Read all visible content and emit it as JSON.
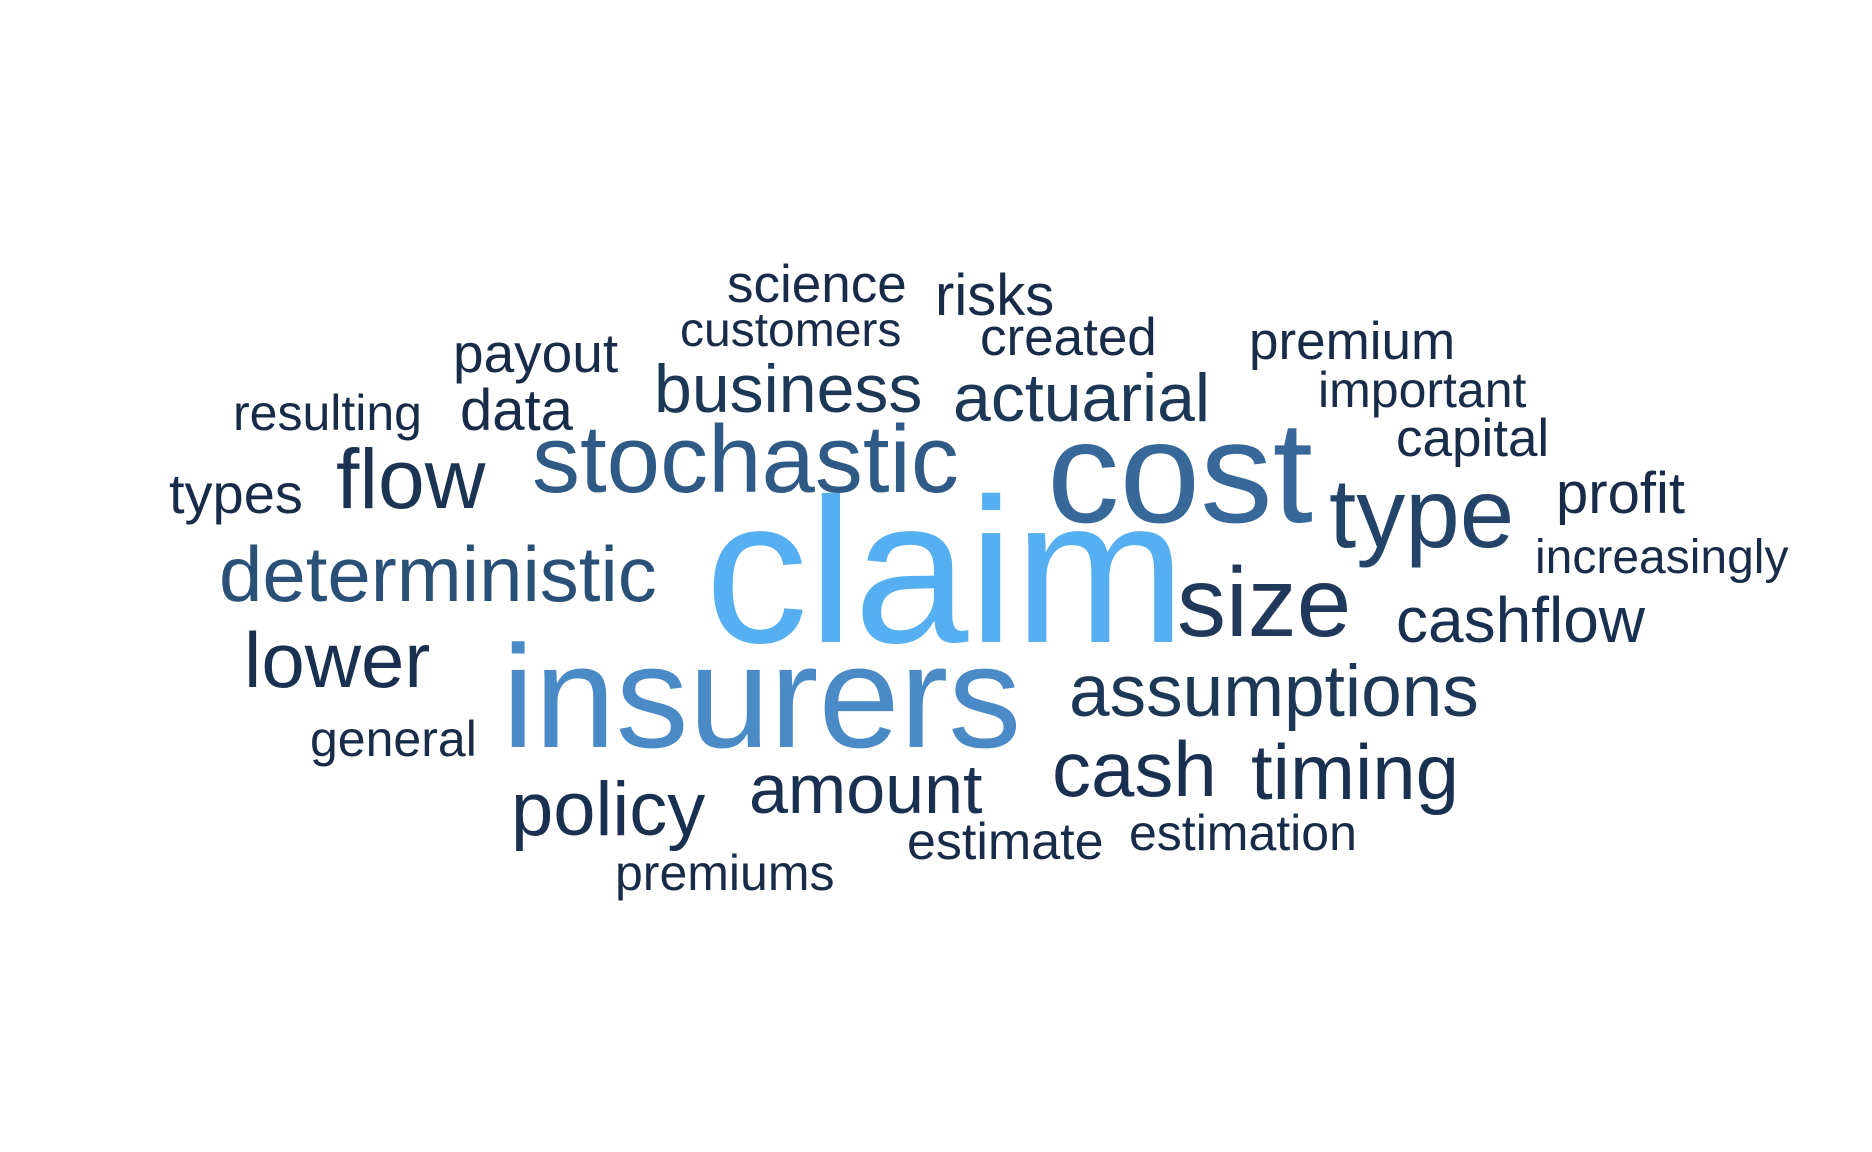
{
  "words": [
    {
      "text": "claim",
      "color": "#56aff0"
    },
    {
      "text": "insurers",
      "color": "#4a8ac7"
    },
    {
      "text": "cost",
      "color": "#38689a"
    },
    {
      "text": "stochastic",
      "color": "#2f5a86"
    },
    {
      "text": "type",
      "color": "#234468"
    },
    {
      "text": "size",
      "color": "#20395a"
    },
    {
      "text": "deterministic",
      "color": "#2a5078"
    },
    {
      "text": "flow",
      "color": "#1c3454"
    },
    {
      "text": "business",
      "color": "#1d3757"
    },
    {
      "text": "actuarial",
      "color": "#1d3757"
    },
    {
      "text": "lower",
      "color": "#1a3050"
    },
    {
      "text": "assumptions",
      "color": "#1d3757"
    },
    {
      "text": "cash",
      "color": "#1a3050"
    },
    {
      "text": "timing",
      "color": "#1a3050"
    },
    {
      "text": "policy",
      "color": "#1a3050"
    },
    {
      "text": "amount",
      "color": "#1a3050"
    },
    {
      "text": "cashflow",
      "color": "#1a3050"
    },
    {
      "text": "profit",
      "color": "#182c4a"
    },
    {
      "text": "capital",
      "color": "#182c4a"
    },
    {
      "text": "increasingly",
      "color": "#182c4a"
    },
    {
      "text": "important",
      "color": "#182c4a"
    },
    {
      "text": "premium",
      "color": "#182c4a"
    },
    {
      "text": "created",
      "color": "#182c4a"
    },
    {
      "text": "risks",
      "color": "#182c4a"
    },
    {
      "text": "science",
      "color": "#182c4a"
    },
    {
      "text": "customers",
      "color": "#182c4a"
    },
    {
      "text": "payout",
      "color": "#182c4a"
    },
    {
      "text": "resulting",
      "color": "#182c4a"
    },
    {
      "text": "data",
      "color": "#182c4a"
    },
    {
      "text": "types",
      "color": "#182c4a"
    },
    {
      "text": "general",
      "color": "#182c4a"
    },
    {
      "text": "premiums",
      "color": "#182c4a"
    },
    {
      "text": "estimate",
      "color": "#182c4a"
    },
    {
      "text": "estimation",
      "color": "#182c4a"
    }
  ]
}
